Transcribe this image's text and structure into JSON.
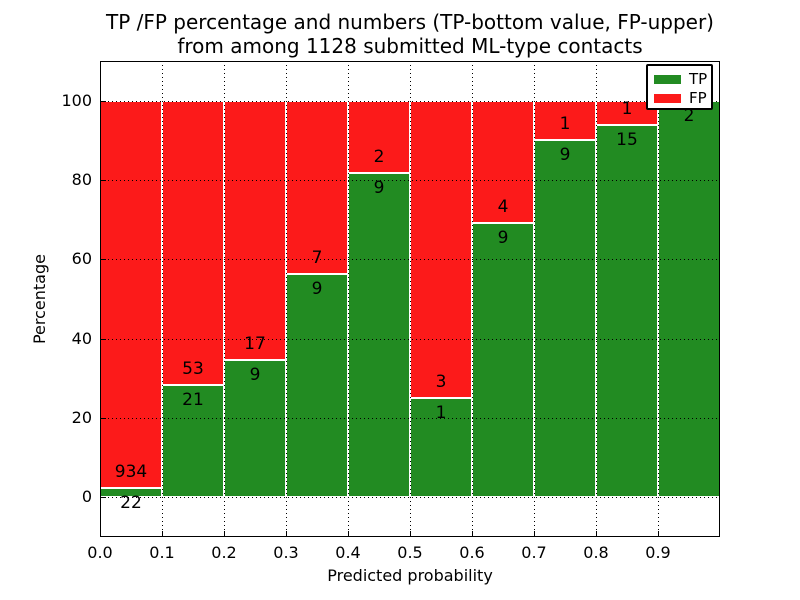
{
  "chart_data": {
    "type": "bar",
    "stacked": true,
    "normalized_to_percent": true,
    "title": "TP /FP percentage and numbers (TP-bottom value, FP-upper)",
    "subtitle": "from among 1128 submitted ML-type contacts",
    "xlabel": "Predicted probability",
    "ylabel": "Percentage",
    "xlim": [
      0.0,
      1.0
    ],
    "ylim": [
      -10,
      110
    ],
    "bin_width": 0.1,
    "xticks": [
      "0.0",
      "0.1",
      "0.2",
      "0.3",
      "0.4",
      "0.5",
      "0.6",
      "0.7",
      "0.8",
      "0.9"
    ],
    "yticks": [
      0,
      20,
      40,
      60,
      80,
      100
    ],
    "grid": true,
    "grid_style": "dotted",
    "bar_edge_color": "#ffffff",
    "legend_position": "upper-right",
    "series": [
      {
        "name": "TP",
        "color": "#228b22",
        "counts": [
          22,
          21,
          9,
          9,
          9,
          1,
          9,
          9,
          15,
          2
        ]
      },
      {
        "name": "FP",
        "color": "#fc1a1a",
        "counts": [
          934,
          53,
          17,
          7,
          2,
          3,
          4,
          1,
          1,
          0
        ]
      }
    ],
    "tp_percent": [
      2.3,
      28.4,
      34.6,
      56.3,
      81.8,
      25.0,
      69.2,
      90.0,
      93.8,
      100.0
    ]
  }
}
